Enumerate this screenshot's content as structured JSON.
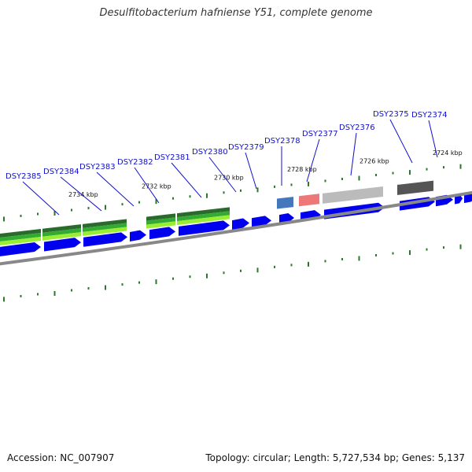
{
  "title": "Desulfitobacterium hafniense Y51, complete genome",
  "footer": {
    "accession": "Accession: NC_007907",
    "stats": "Topology: circular; Length: 5,727,534 bp; Genes: 5,137"
  },
  "colors": {
    "gene": "#0000ee",
    "label": "#1010cc",
    "backbone": "#888888",
    "tick": "#2a7a2a",
    "cog_green": "#33aa33",
    "cog_dark": "#2a6a2a",
    "cog_lime": "#99ee33",
    "cog_blue": "#4477bb",
    "cog_pink": "#ee7777",
    "cog_gray": "#bbbbbb",
    "cog_darkgray": "#555555"
  },
  "kbp_marks": [
    "2734 kbp",
    "2732 kbp",
    "2730 kbp",
    "2728 kbp",
    "2726 kbp",
    "2724 kbp"
  ],
  "genes": [
    {
      "label": "DSY2385"
    },
    {
      "label": "DSY2384"
    },
    {
      "label": "DSY2383"
    },
    {
      "label": "DSY2382"
    },
    {
      "label": "DSY2381"
    },
    {
      "label": "DSY2380"
    },
    {
      "label": "DSY2379"
    },
    {
      "label": "DSY2378"
    },
    {
      "label": "DSY2377"
    },
    {
      "label": "DSY2376"
    },
    {
      "label": "DSY2375"
    },
    {
      "label": "DSY2374"
    }
  ]
}
